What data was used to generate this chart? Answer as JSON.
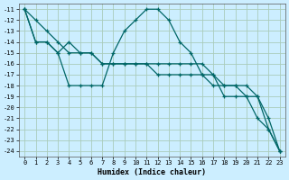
{
  "xlabel": "Humidex (Indice chaleur)",
  "background_color": "#cceeff",
  "grid_color": "#aaccbb",
  "line_color": "#006666",
  "xlim": [
    -0.5,
    23.5
  ],
  "ylim": [
    -24.5,
    -10.5
  ],
  "xticks": [
    0,
    1,
    2,
    3,
    4,
    5,
    6,
    7,
    8,
    9,
    10,
    11,
    12,
    13,
    14,
    15,
    16,
    17,
    18,
    19,
    20,
    21,
    22,
    23
  ],
  "yticks": [
    -11,
    -12,
    -13,
    -14,
    -15,
    -16,
    -17,
    -18,
    -19,
    -20,
    -21,
    -22,
    -23,
    -24
  ],
  "series1_x": [
    0,
    1,
    2,
    3,
    4,
    5,
    6,
    7,
    8,
    9,
    10,
    11,
    12,
    13,
    14,
    15,
    16,
    17,
    18,
    19,
    20,
    21,
    22,
    23
  ],
  "series1_y": [
    -11,
    -14,
    -14,
    -15,
    -14,
    -15,
    -15,
    -16,
    -16,
    -16,
    -16,
    -16,
    -16,
    -16,
    -16,
    -16,
    -16,
    -17,
    -18,
    -18,
    -19,
    -19,
    -22,
    -24
  ],
  "series2_x": [
    0,
    1,
    2,
    3,
    4,
    5,
    6,
    7,
    8,
    9,
    10,
    11,
    12,
    13,
    14,
    15,
    16,
    17,
    18,
    19,
    20,
    21,
    22,
    23
  ],
  "series2_y": [
    -11,
    -14,
    -14,
    -15,
    -18,
    -18,
    -18,
    -18,
    -15,
    -13,
    -12,
    -11,
    -11,
    -12,
    -14,
    -15,
    -17,
    -17,
    -19,
    -19,
    -19,
    -21,
    -22,
    -24
  ],
  "series3_x": [
    0,
    1,
    2,
    3,
    4,
    5,
    6,
    7,
    8,
    9,
    10,
    11,
    12,
    13,
    14,
    15,
    16,
    17,
    18,
    19,
    20,
    21,
    22,
    23
  ],
  "series3_y": [
    -11,
    -12,
    -13,
    -14,
    -15,
    -15,
    -15,
    -16,
    -16,
    -16,
    -16,
    -16,
    -17,
    -17,
    -17,
    -17,
    -17,
    -18,
    -18,
    -18,
    -18,
    -19,
    -21,
    -24
  ]
}
